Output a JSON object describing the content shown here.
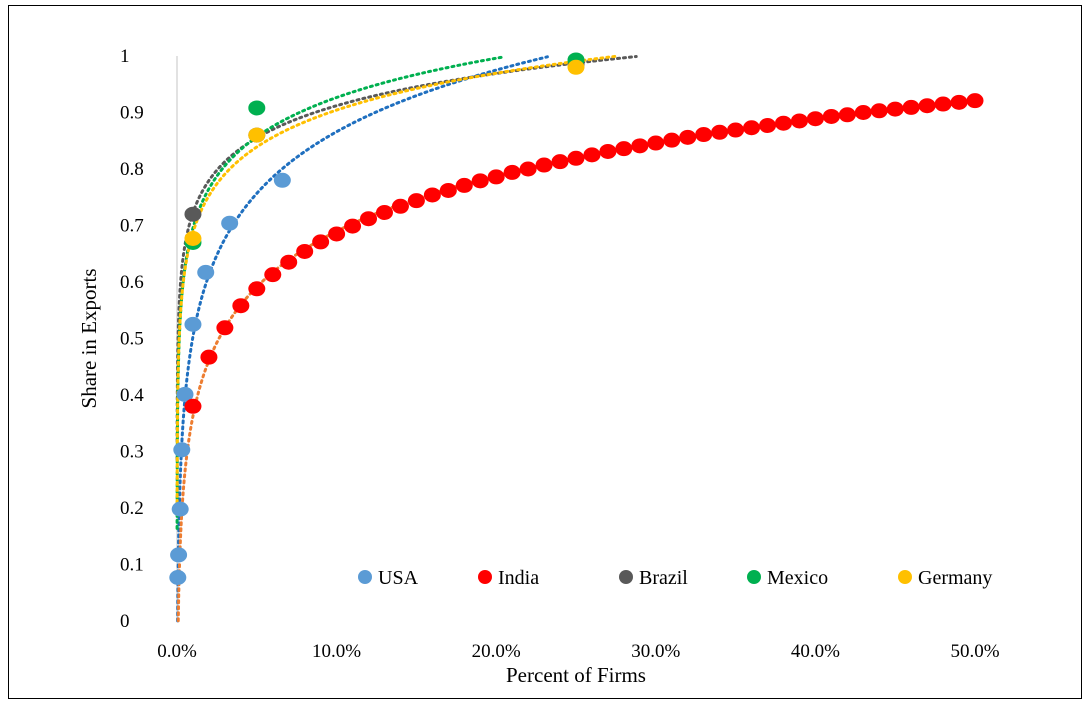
{
  "chart_data": {
    "type": "scatter",
    "xlabel": "Percent of Firms",
    "ylabel": "Share in Exports",
    "xlim": [
      0,
      50
    ],
    "ylim": [
      0,
      1
    ],
    "x_ticks": [
      0,
      10,
      20,
      30,
      40,
      50
    ],
    "x_tick_labels": [
      "0.0%",
      "10.0%",
      "20.0%",
      "30.0%",
      "40.0%",
      "50.0%"
    ],
    "y_ticks": [
      0,
      0.1,
      0.2,
      0.3,
      0.4,
      0.5,
      0.6,
      0.7,
      0.8,
      0.9,
      1
    ],
    "y_tick_labels": [
      "0",
      "0.1",
      "0.2",
      "0.3",
      "0.4",
      "0.5",
      "0.6",
      "0.7",
      "0.8",
      "0.9",
      "1"
    ],
    "grid": false,
    "legend_position": "bottom-right",
    "trendlines": "logarithmic, dotted",
    "series": [
      {
        "name": "USA",
        "color": "#5B9BD5",
        "trend_color": "#1F6FBF",
        "x": [
          0.05,
          0.1,
          0.2,
          0.3,
          0.5,
          1.0,
          1.8,
          3.3,
          6.6
        ],
        "y": [
          0.077,
          0.117,
          0.198,
          0.303,
          0.401,
          0.525,
          0.617,
          0.704,
          0.78
        ]
      },
      {
        "name": "India",
        "color": "#FF0000",
        "trend_color": "#ED7D31",
        "x": [
          1,
          2,
          3,
          4,
          5,
          6,
          7,
          8,
          9,
          10,
          11,
          12,
          13,
          14,
          15,
          16,
          17,
          18,
          19,
          20,
          21,
          22,
          23,
          24,
          25,
          26,
          27,
          28,
          29,
          30,
          31,
          32,
          33,
          34,
          35,
          36,
          37,
          38,
          39,
          40,
          41,
          42,
          43,
          44,
          45,
          46,
          47,
          48,
          49,
          50
        ],
        "y": [
          0.38,
          0.467,
          0.519,
          0.558,
          0.588,
          0.613,
          0.635,
          0.654,
          0.671,
          0.685,
          0.699,
          0.712,
          0.723,
          0.734,
          0.744,
          0.754,
          0.762,
          0.771,
          0.779,
          0.786,
          0.794,
          0.8,
          0.807,
          0.813,
          0.819,
          0.825,
          0.831,
          0.836,
          0.841,
          0.846,
          0.851,
          0.856,
          0.861,
          0.865,
          0.869,
          0.873,
          0.877,
          0.881,
          0.885,
          0.889,
          0.893,
          0.896,
          0.9,
          0.903,
          0.906,
          0.909,
          0.912,
          0.915,
          0.918,
          0.921
        ]
      },
      {
        "name": "Brazil",
        "color": "#595959",
        "trend_color": "#595959",
        "x": [
          1.0,
          5.0,
          25.0
        ],
        "y": [
          0.72,
          0.86,
          0.985
        ]
      },
      {
        "name": "Mexico",
        "color": "#00B050",
        "trend_color": "#00B050",
        "x": [
          1.0,
          5.0,
          25.0
        ],
        "y": [
          0.67,
          0.908,
          0.993
        ]
      },
      {
        "name": "Germany",
        "color": "#FFC000",
        "trend_color": "#FFC000",
        "x": [
          1.0,
          5.0,
          25.0
        ],
        "y": [
          0.677,
          0.86,
          0.98
        ]
      }
    ]
  }
}
